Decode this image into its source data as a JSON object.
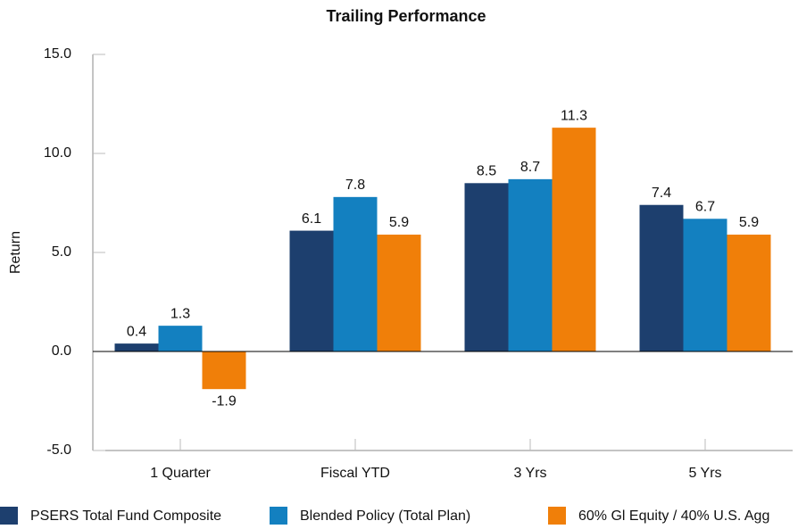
{
  "chart_data": {
    "type": "bar",
    "title": "Trailing Performance",
    "y_label": "Return",
    "categories": [
      "1 Quarter",
      "Fiscal YTD",
      "3 Yrs",
      "5 Yrs"
    ],
    "series": [
      {
        "name": "PSERS Total Fund Composite",
        "color": "#1d3f6e",
        "values": [
          0.4,
          6.1,
          8.5,
          7.4
        ]
      },
      {
        "name": "Blended Policy (Total Plan)",
        "color": "#1380c0",
        "values": [
          1.3,
          7.8,
          8.7,
          6.7
        ]
      },
      {
        "name": "60% Gl Equity / 40% U.S. Agg",
        "color": "#f07f09",
        "values": [
          -1.9,
          5.9,
          11.3,
          5.9
        ]
      }
    ],
    "ylim": [
      -5,
      15
    ],
    "yticks": [
      {
        "value": -5,
        "label": "-5.0"
      },
      {
        "value": 0,
        "label": "0.0"
      },
      {
        "value": 5,
        "label": "5.0"
      },
      {
        "value": 10,
        "label": "10.0"
      },
      {
        "value": 15,
        "label": "15.0"
      }
    ],
    "grid": false,
    "legend": "bottom"
  }
}
